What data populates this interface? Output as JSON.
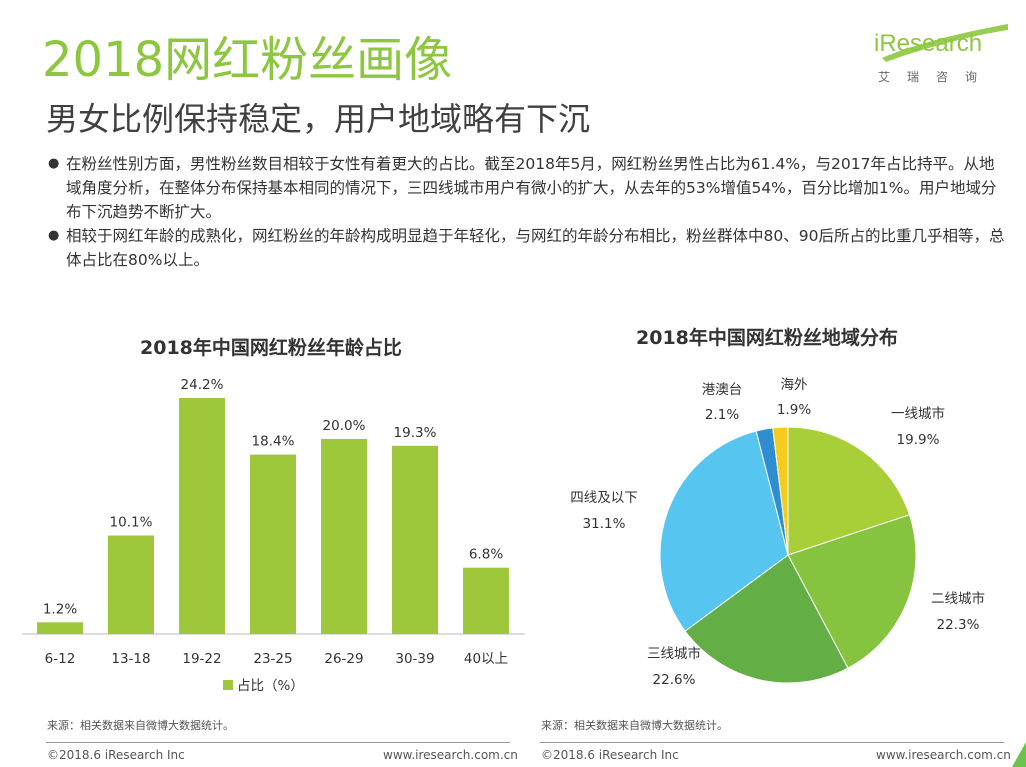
{
  "page": {
    "title": "2018网红粉丝画像",
    "subtitle": "男女比例保持稳定，用户地域略有下沉"
  },
  "logo": {
    "brand": "iResearch",
    "tagline": "艾瑞咨询"
  },
  "bullets": [
    "在粉丝性别方面，男性粉丝数目相较于女性有着更大的占比。截至2018年5月，网红粉丝男性占比为61.4%，与2017年占比持平。从地域角度分析，在整体分布保持基本相同的情况下，三四线城市用户有微小的扩大，从去年的53%增值54%，百分比增加1%。用户地域分布下沉趋势不断扩大。",
    "相较于网红年龄的成熟化，网红粉丝的年龄构成明显趋于年轻化，与网红的年龄分布相比，粉丝群体中80、90后所占的比重几乎相等，总体占比在80%以上。"
  ],
  "chart_data": [
    {
      "type": "bar",
      "title": "2018年中国网红粉丝年龄占比",
      "categories": [
        "6-12",
        "13-18",
        "19-22",
        "23-25",
        "26-29",
        "30-39",
        "40以上"
      ],
      "series": [
        {
          "name": "占比（%）",
          "values": [
            1.2,
            10.1,
            24.2,
            18.4,
            20.0,
            19.3,
            6.8
          ]
        }
      ],
      "data_labels": [
        "1.2%",
        "10.1%",
        "24.2%",
        "18.4%",
        "20.0%",
        "19.3%",
        "6.8%"
      ],
      "ylim": [
        0,
        24.2
      ],
      "color": "#9ec73c",
      "legend": "bottom",
      "grid": false
    },
    {
      "type": "pie",
      "title": "2018年中国网红粉丝地域分布",
      "slices": [
        {
          "label": "一线城市",
          "value": 19.9,
          "value_label": "19.9%",
          "color": "#a8cf38"
        },
        {
          "label": "二线城市",
          "value": 22.3,
          "value_label": "22.3%",
          "color": "#86c440"
        },
        {
          "label": "三线城市",
          "value": 22.6,
          "value_label": "22.6%",
          "color": "#64ae46"
        },
        {
          "label": "四线及以下",
          "value": 31.1,
          "value_label": "31.1%",
          "color": "#56c6f0"
        },
        {
          "label": "港澳台",
          "value": 2.1,
          "value_label": "2.1%",
          "color": "#2f8ed2"
        },
        {
          "label": "海外",
          "value": 1.9,
          "value_label": "1.9%",
          "color": "#f5cc1e"
        }
      ],
      "start": "12 o'clock",
      "direction": "clockwise",
      "legend": "none"
    }
  ],
  "footer": {
    "source_left": "来源：相关数据来自微博大数据统计。",
    "source_right": "来源：相关数据来自微博大数据统计。",
    "copyright_left": "©2018.6 iResearch Inc",
    "copyright_right": "©2018.6 iResearch Inc",
    "url_left": "www.iresearch.com.cn",
    "url_right": "www.iresearch.com.cn"
  },
  "colors": {
    "accent": "#8dc63f",
    "corner": "#6cc24a"
  }
}
